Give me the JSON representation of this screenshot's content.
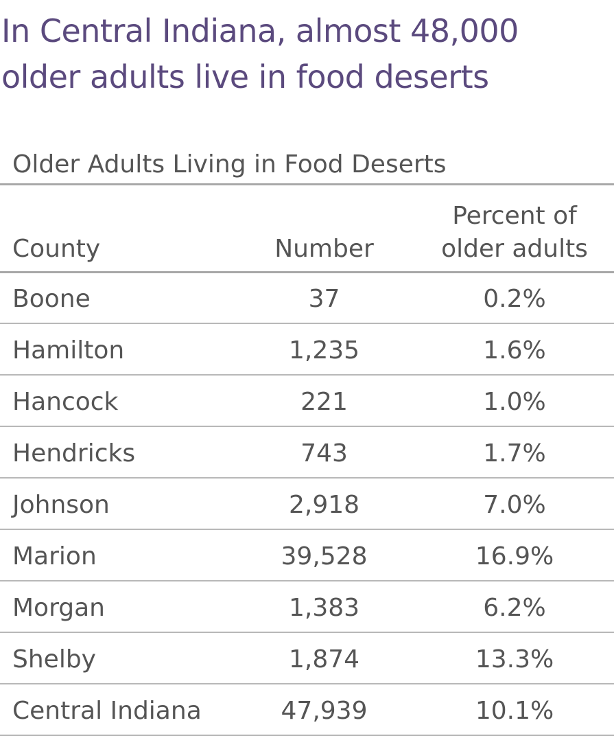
{
  "headline": {
    "line1": "In Central Indiana, almost 48,000",
    "line2": "older adults live in food deserts"
  },
  "chart_data": {
    "type": "table",
    "title": "Older Adults Living in Food Deserts",
    "columns": {
      "county": "County",
      "number": "Number",
      "percent_line1": "Percent of",
      "percent_line2": "older adults"
    },
    "rows": [
      {
        "county": "Boone",
        "number": "37",
        "percent": "0.2%"
      },
      {
        "county": "Hamilton",
        "number": "1,235",
        "percent": "1.6%"
      },
      {
        "county": "Hancock",
        "number": "221",
        "percent": "1.0%"
      },
      {
        "county": "Hendricks",
        "number": "743",
        "percent": "1.7%"
      },
      {
        "county": "Johnson",
        "number": "2,918",
        "percent": "7.0%"
      },
      {
        "county": "Marion",
        "number": "39,528",
        "percent": "16.9%"
      },
      {
        "county": "Morgan",
        "number": "1,383",
        "percent": "6.2%"
      },
      {
        "county": "Shelby",
        "number": "1,874",
        "percent": "13.3%"
      },
      {
        "county": "Central Indiana",
        "number": "47,939",
        "percent": "10.1%"
      }
    ]
  },
  "colors": {
    "headline": "#5b4a7e",
    "text": "#555555",
    "rule": "#a8a8a8"
  }
}
